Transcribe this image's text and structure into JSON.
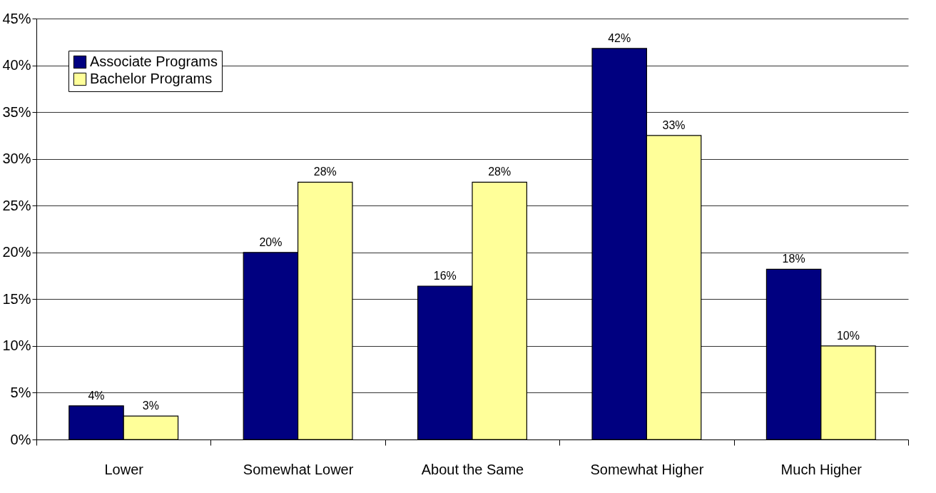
{
  "chart_data": {
    "type": "bar",
    "categories": [
      "Lower",
      "Somewhat Lower",
      "About the Same",
      "Somewhat Higher",
      "Much Higher"
    ],
    "series": [
      {
        "name": "Associate Programs",
        "color": "#000080",
        "values": [
          3.6,
          20,
          16.4,
          41.8,
          18.2
        ],
        "value_labels": [
          "4%",
          "20%",
          "16%",
          "42%",
          "18%"
        ]
      },
      {
        "name": "Bachelor Programs",
        "color": "#ffff99",
        "values": [
          2.5,
          27.5,
          27.5,
          32.5,
          10
        ],
        "value_labels": [
          "3%",
          "28%",
          "28%",
          "33%",
          "10%"
        ]
      }
    ],
    "ylim": [
      0,
      45
    ],
    "yticks": [
      {
        "value": 0,
        "label": "0%"
      },
      {
        "value": 5,
        "label": "5%"
      },
      {
        "value": 10,
        "label": "10%"
      },
      {
        "value": 15,
        "label": "15%"
      },
      {
        "value": 20,
        "label": "20%"
      },
      {
        "value": 25,
        "label": "25%"
      },
      {
        "value": 30,
        "label": "30%"
      },
      {
        "value": 35,
        "label": "35%"
      },
      {
        "value": 40,
        "label": "40%"
      },
      {
        "value": 45,
        "label": "45%"
      }
    ],
    "grid": "y",
    "legend": "top left"
  }
}
